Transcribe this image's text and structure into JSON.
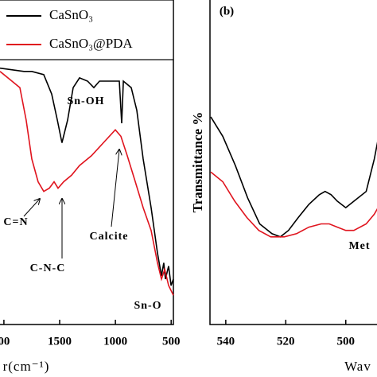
{
  "chart_data": [
    {
      "type": "line",
      "x_label": "r(cm⁻¹)",
      "xlim": [
        2035,
        480
      ],
      "ylim": [
        0,
        100
      ],
      "xticks": [
        {
          "value": 2000,
          "label": "00"
        },
        1500,
        1000,
        500
      ],
      "series": [
        {
          "name": "CaSnO₃",
          "color": "#000000",
          "x": [
            2035,
            1821,
            1750,
            1643,
            1571,
            1521,
            1479,
            1429,
            1379,
            1322,
            1250,
            1193,
            1143,
            1036,
            965,
            944,
            929,
            858,
            808,
            751,
            680,
            623,
            587,
            566,
            551,
            523,
            501,
            480
          ],
          "values": [
            79,
            78,
            78,
            77,
            71,
            63,
            56,
            63,
            73,
            76,
            75,
            73,
            75,
            75,
            75,
            62,
            75,
            73,
            66,
            51,
            36,
            22,
            15,
            19,
            14,
            18,
            12,
            14
          ]
        },
        {
          "name": "CaSnO₃@PDA",
          "color": "#e0141e",
          "x": [
            2035,
            1928,
            1857,
            1800,
            1750,
            1693,
            1643,
            1593,
            1550,
            1514,
            1464,
            1393,
            1322,
            1215,
            1108,
            1001,
            951,
            894,
            822,
            751,
            680,
            623,
            587,
            558,
            523,
            480
          ],
          "values": [
            78,
            75,
            73,
            63,
            51,
            44,
            41,
            42,
            44,
            42,
            44,
            46,
            49,
            52,
            56,
            60,
            58,
            52,
            44,
            36,
            29,
            19,
            14,
            17,
            12,
            9
          ]
        }
      ],
      "annotations": [
        "Sn-OH",
        "C=N",
        "C-N-C",
        "Calcite",
        "Sn-O"
      ]
    },
    {
      "type": "line",
      "panel_label": "(b)",
      "y_label": "Transmittance %",
      "x_label": "Wav",
      "xlim": [
        545,
        488
      ],
      "ylim": [
        0,
        100
      ],
      "xticks": [
        540,
        520,
        500
      ],
      "series": [
        {
          "color": "#000000",
          "x": [
            545,
            541,
            536.8,
            532.7,
            528.7,
            524.6,
            521.8,
            519.1,
            515.8,
            512.3,
            508.8,
            506.9,
            504.9,
            502.8,
            500,
            497.3,
            493.2,
            490.5,
            488
          ],
          "values": [
            64,
            58,
            49,
            39,
            31,
            28,
            27,
            29,
            33,
            37,
            40,
            41,
            40,
            38,
            36,
            38,
            41,
            51,
            63
          ]
        },
        {
          "color": "#e0141e",
          "x": [
            545,
            541,
            537,
            533,
            529,
            525,
            520.5,
            516.4,
            512.3,
            508.2,
            505.5,
            502.8,
            500,
            497.3,
            493.2,
            490.5,
            488
          ],
          "values": [
            47,
            44,
            38,
            33,
            29,
            27,
            27,
            28,
            30,
            31,
            31,
            30,
            29,
            29,
            31,
            34,
            38
          ]
        }
      ],
      "annotations": [
        "Met"
      ]
    }
  ]
}
